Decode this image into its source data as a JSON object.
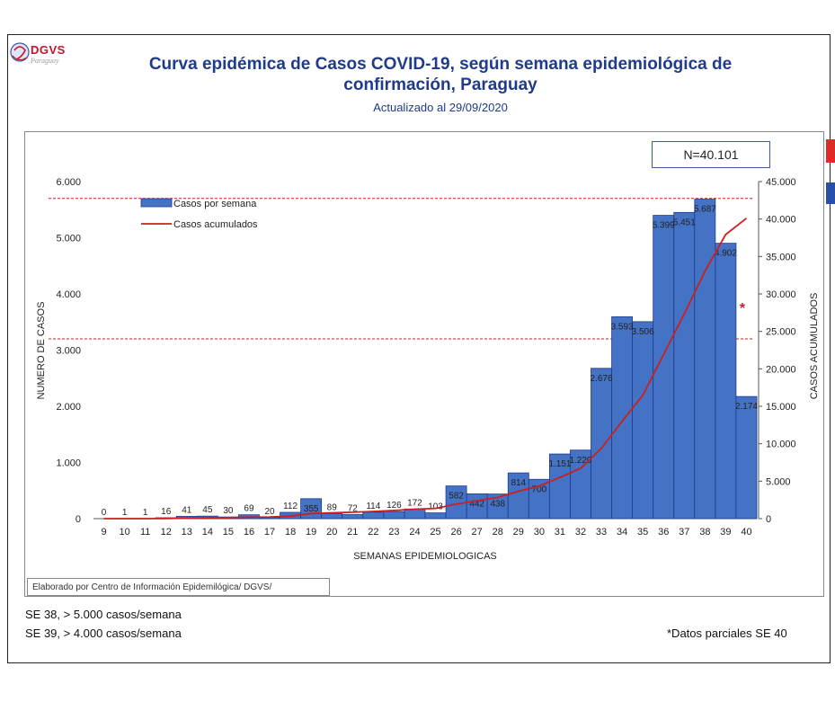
{
  "header": {
    "logo_text": "DGVS",
    "logo_sub": "Paraguay",
    "title_line1": "Curva epidémica de Casos COVID-19, según semana epidemiológica de",
    "title_line2": "confirmación, Paraguay",
    "subtitle": "Actualizado al 29/09/2020"
  },
  "total_box": "N=40.101",
  "credit": "Elaborado por Centro de Información Epidemilógica/ DGVS/",
  "notes": {
    "line1": "SE 38, > 5.000 casos/semana",
    "line2": "SE 39, > 4.000 casos/semana",
    "partial": "*Datos parciales SE 40"
  },
  "colors": {
    "bar": "#4472c4",
    "bar_stroke": "#1f3b8c",
    "line": "#cc1f1f",
    "threshold": "#cc1f1f",
    "title": "#1f3b8c"
  },
  "chart_data": {
    "type": "bar",
    "xlabel": "SEMANAS EPIDEMIOLOGICAS",
    "ylabel": "NUMERO DE CASOS",
    "y2label": "CASOS  ACUMULADOS",
    "ylim": [
      0,
      6000
    ],
    "y2lim": [
      0,
      45000
    ],
    "yticks": [
      "0",
      "1.000",
      "2.000",
      "3.000",
      "4.000",
      "5.000",
      "6.000"
    ],
    "y2ticks": [
      "0",
      "5.000",
      "10.000",
      "15.000",
      "20.000",
      "25.000",
      "30.000",
      "35.000",
      "40.000",
      "45.000"
    ],
    "categories": [
      "9",
      "10",
      "11",
      "12",
      "13",
      "14",
      "15",
      "16",
      "17",
      "18",
      "19",
      "20",
      "21",
      "22",
      "23",
      "24",
      "25",
      "26",
      "27",
      "28",
      "29",
      "30",
      "31",
      "32",
      "33",
      "34",
      "35",
      "36",
      "37",
      "38",
      "39",
      "40"
    ],
    "series": [
      {
        "name": "Casos por semana",
        "type": "bar",
        "values": [
          0,
          1,
          1,
          16,
          41,
          45,
          30,
          69,
          20,
          112,
          355,
          89,
          72,
          114,
          126,
          172,
          103,
          582,
          442,
          438,
          814,
          700,
          1151,
          1220,
          2676,
          3593,
          3506,
          5399,
          5451,
          5687,
          4902,
          2174
        ],
        "labels": [
          "0",
          "1",
          "1",
          "16",
          "41",
          "45",
          "30",
          "69",
          "20",
          "112",
          "355",
          "89",
          "72",
          "114",
          "126",
          "172",
          "103",
          "582",
          "442",
          "438",
          "814",
          "700",
          "1.151",
          "1.220",
          "2.676",
          "3.593",
          "3.506",
          "5.399",
          "5.451",
          "5.687",
          "4.902",
          "2.174"
        ]
      },
      {
        "name": "Casos acumulados",
        "type": "line",
        "axis": "right",
        "values": [
          0,
          1,
          2,
          18,
          59,
          104,
          134,
          203,
          223,
          335,
          690,
          779,
          851,
          965,
          1091,
          1263,
          1366,
          1948,
          2390,
          2828,
          3642,
          4342,
          5493,
          6713,
          9389,
          12982,
          16488,
          21887,
          27338,
          33025,
          37927,
          40101
        ]
      }
    ],
    "reference_lines": [
      5700,
      3200
    ],
    "annotation": "*",
    "legend_position": "top-left",
    "grid": false
  }
}
